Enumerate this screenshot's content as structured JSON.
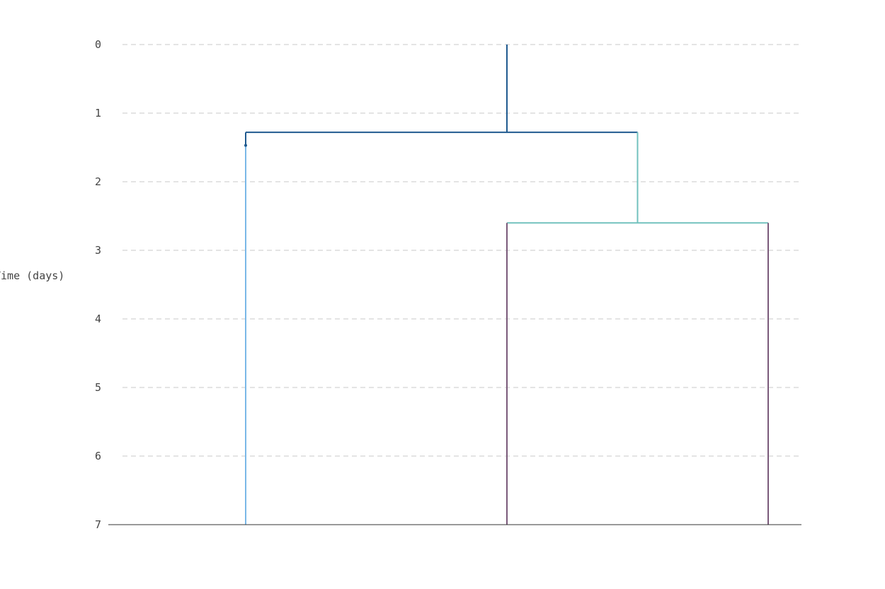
{
  "chart_data": {
    "type": "dendrogram",
    "ylabel": "Time (days)",
    "y_axis_inverted": true,
    "ylim": [
      0,
      7
    ],
    "yticks": [
      "0",
      "1",
      "2",
      "3",
      "4",
      "5",
      "6",
      "7"
    ],
    "grid": "horizontal dashed",
    "colors": {
      "root": "#1f5a8f",
      "left_lineage": "#7ab8e8",
      "right_lineage": "#72c2be",
      "tips": "#7a5a7a",
      "axis": "#333333",
      "grid": "#d4d4d4",
      "text": "#444444"
    },
    "tips": [
      {
        "id": "tip-a",
        "x": 0.0,
        "time": 7
      },
      {
        "id": "tip-b",
        "x": 1.0,
        "time": 7
      },
      {
        "id": "tip-c",
        "x": 2.0,
        "time": 7
      }
    ],
    "internal_nodes": [
      {
        "id": "root",
        "x": 1.0,
        "time": 0
      },
      {
        "id": "node-1",
        "time": 1.28,
        "children": [
          "tip-a",
          "node-2"
        ]
      },
      {
        "id": "node-2",
        "x": 1.5,
        "time": 2.6,
        "children": [
          "tip-b",
          "tip-c"
        ]
      }
    ],
    "event_markers": [
      {
        "lineage": "tip-a",
        "time": 1.47
      }
    ],
    "branches": [
      {
        "name": "root-stem",
        "x": [
          1.0,
          1.0
        ],
        "time": [
          0,
          1.28
        ],
        "color": "root"
      },
      {
        "name": "node-1-bar-left",
        "x": [
          0.0,
          1.0
        ],
        "time": [
          1.28,
          1.28
        ],
        "color": "root"
      },
      {
        "name": "node-1-bar-right",
        "x": [
          1.0,
          1.5
        ],
        "time": [
          1.28,
          1.28
        ],
        "color": "root"
      },
      {
        "name": "left-lineage-upper",
        "x": [
          0.0,
          0.0
        ],
        "time": [
          1.28,
          1.47
        ],
        "color": "root"
      },
      {
        "name": "left-lineage-lower",
        "x": [
          0.0,
          0.0
        ],
        "time": [
          1.47,
          7
        ],
        "color": "left_lineage"
      },
      {
        "name": "right-lineage-stem",
        "x": [
          1.5,
          1.5
        ],
        "time": [
          1.28,
          2.6
        ],
        "color": "right_lineage"
      },
      {
        "name": "node-2-bar",
        "x": [
          1.0,
          2.0
        ],
        "time": [
          2.6,
          2.6
        ],
        "color": "right_lineage"
      },
      {
        "name": "tip-b-branch",
        "x": [
          1.0,
          1.0
        ],
        "time": [
          2.6,
          7
        ],
        "color": "tips"
      },
      {
        "name": "tip-c-branch",
        "x": [
          2.0,
          2.0
        ],
        "time": [
          2.6,
          7
        ],
        "color": "tips"
      }
    ]
  }
}
